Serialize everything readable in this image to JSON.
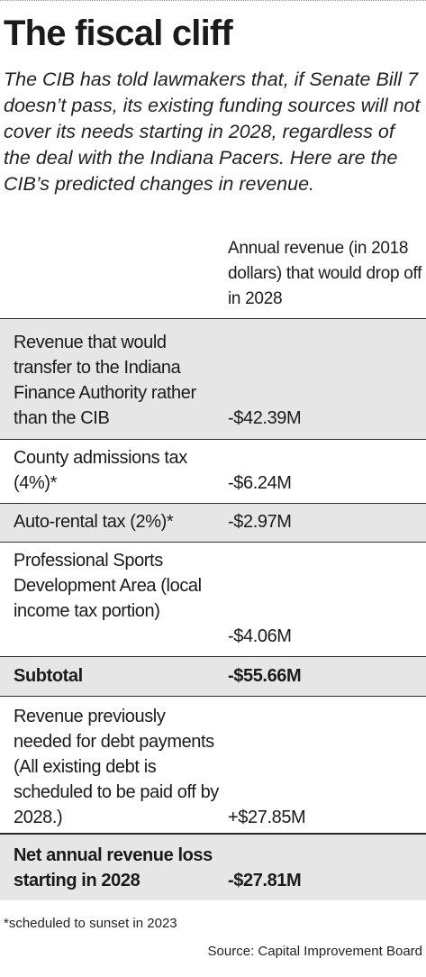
{
  "title": "The fiscal cliff",
  "subtitle": "The CIB has told lawmakers that, if Senate Bill 7 doesn’t pass, its existing funding sources will not cover its needs starting in 2028, regardless of the deal with the Indiana Pacers. Here are the CIB’s predicted changes in revenue.",
  "column_header": "Annual revenue (in 2018 dollars) that would drop off in 2028",
  "rows": [
    {
      "label": "Revenue that would transfer to the Indiana Finance Authority rather than the CIB",
      "value": "-$42.39M"
    },
    {
      "label": "County admissions tax (4%)*",
      "value": "-$6.24M"
    },
    {
      "label": "Auto-rental tax (2%)*",
      "value": "-$2.97M"
    },
    {
      "label": "Professional Sports Development Area (local income tax portion)",
      "value": "-$4.06M"
    },
    {
      "label": "Subtotal",
      "value": "-$55.66M"
    },
    {
      "label": "Revenue previously needed for debt payments (All existing debt is scheduled to be paid off by 2028.)",
      "value": "+$27.85M"
    },
    {
      "label": "Net annual revenue loss starting in 2028",
      "value": "-$27.81M"
    }
  ],
  "footnote": "*scheduled to sunset in 2023",
  "source": "Source: Capital Improvement Board",
  "colors": {
    "shade": "#e6e6e6",
    "rule": "#2a2a2a",
    "text": "#1a1a1a"
  }
}
